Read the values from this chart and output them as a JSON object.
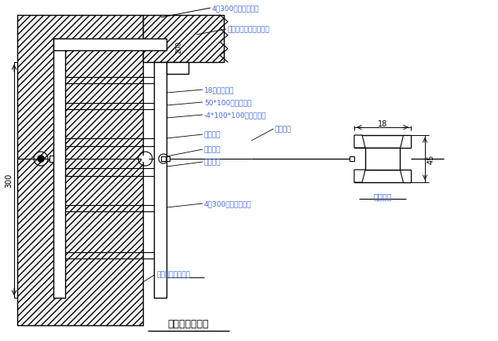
{
  "title": "挡墙模板支设图",
  "bg_color": "#ffffff",
  "lc": "#000000",
  "tc": "#4169E1",
  "fs": 6.5,
  "figsize": [
    6.34,
    4.35
  ],
  "dpi": 100,
  "labels": {
    "top_water_stop": "4厚300宽钢板止水带",
    "second_layer": "处二层（处一层）填层",
    "plywood": "18厚木胶合板",
    "wood_purlin_h": "50*100木枋垫管棒",
    "steel_plate": "-4*100*100钢板止水片",
    "limit_tube": "限位钢管",
    "steel_tube": "钢管模棒",
    "tie_rod": "对拉螺杆",
    "wood_wedge": "步方大棒",
    "bottom_water_stop": "4厚300宽钢板止水带",
    "third_layer": "处三层（处二层）",
    "wood_purlin_label": "木层大棒",
    "dim_18": "18",
    "dim_45": "45",
    "dim_300": "300",
    "dim_200": "200"
  }
}
